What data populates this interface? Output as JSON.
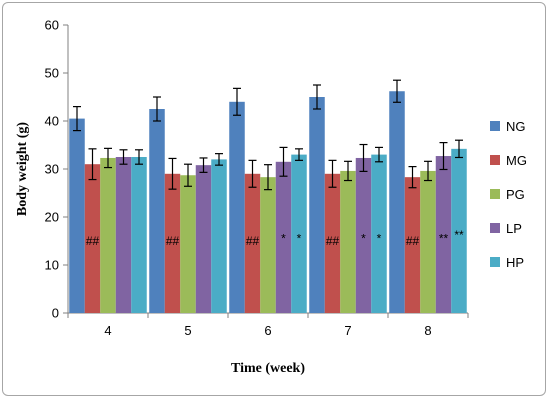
{
  "chart_data": {
    "type": "bar",
    "xlabel": "Time (week)",
    "ylabel": "Body weight (g)",
    "ylim": [
      0,
      60
    ],
    "yticks": [
      0,
      10,
      20,
      30,
      40,
      50,
      60
    ],
    "grid": false,
    "legend_position": "right",
    "categories": [
      "4",
      "5",
      "6",
      "7",
      "8"
    ],
    "series": [
      {
        "name": "NG",
        "color": "#4f81bd",
        "values": [
          40.5,
          42.5,
          44.0,
          45.0,
          46.2
        ],
        "errors": [
          2.5,
          2.5,
          2.8,
          2.5,
          2.3
        ]
      },
      {
        "name": "MG",
        "color": "#c0504d",
        "values": [
          31.0,
          29.0,
          29.0,
          29.0,
          28.3
        ],
        "errors": [
          3.2,
          3.2,
          2.8,
          2.8,
          2.2
        ]
      },
      {
        "name": "PG",
        "color": "#9bbb59",
        "values": [
          32.3,
          28.7,
          28.3,
          29.6,
          29.6
        ],
        "errors": [
          2.0,
          2.3,
          2.6,
          2.0,
          2.0
        ]
      },
      {
        "name": "LP",
        "color": "#8064a2",
        "values": [
          32.5,
          30.8,
          31.5,
          32.3,
          32.7
        ],
        "errors": [
          1.5,
          1.5,
          3.0,
          2.8,
          2.8
        ]
      },
      {
        "name": "HP",
        "color": "#4bacc6",
        "values": [
          32.5,
          32.0,
          33.0,
          33.0,
          34.2
        ],
        "errors": [
          1.5,
          1.2,
          1.2,
          1.5,
          1.8
        ]
      }
    ],
    "annotations": [
      {
        "text": "##",
        "category": 0,
        "series": 1,
        "y": 15
      },
      {
        "text": "##",
        "category": 1,
        "series": 1,
        "y": 15
      },
      {
        "text": "##",
        "category": 2,
        "series": 1,
        "y": 15
      },
      {
        "text": "*",
        "category": 2,
        "series": 3,
        "y": 15.5
      },
      {
        "text": "*",
        "category": 2,
        "series": 4,
        "y": 15.5
      },
      {
        "text": "##",
        "category": 3,
        "series": 1,
        "y": 15
      },
      {
        "text": "*",
        "category": 3,
        "series": 3,
        "y": 15.5
      },
      {
        "text": "*",
        "category": 3,
        "series": 4,
        "y": 15.5
      },
      {
        "text": "##",
        "category": 4,
        "series": 1,
        "y": 15
      },
      {
        "text": "**",
        "category": 4,
        "series": 3,
        "y": 15.5
      },
      {
        "text": "**",
        "category": 4,
        "series": 4,
        "y": 16.2
      }
    ]
  }
}
